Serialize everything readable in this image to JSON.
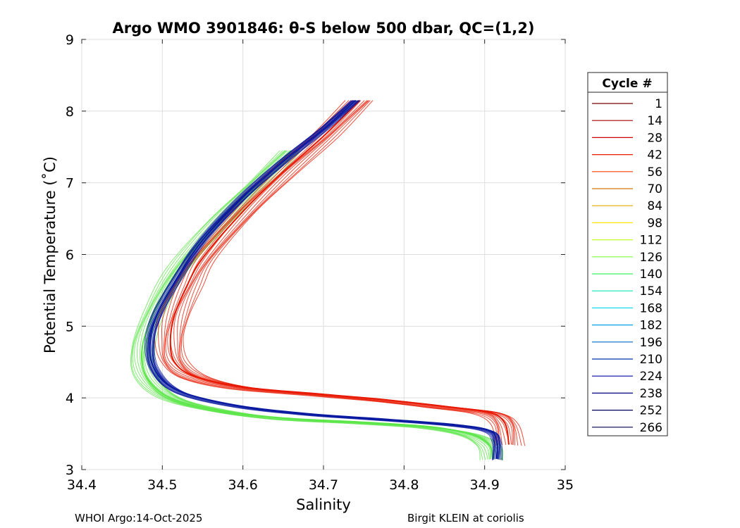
{
  "chart_data": {
    "type": "line",
    "title": "Argo WMO 3901846: θ-S below 500 dbar,  QC=(1,2)",
    "xlabel": "Salinity",
    "ylabel": "Potential Temperature (˚C)",
    "xlim": [
      34.4,
      35.0
    ],
    "ylim": [
      3,
      9
    ],
    "x_ticks": [
      "34.4",
      "34.5",
      "34.6",
      "34.7",
      "34.8",
      "34.9",
      "35"
    ],
    "y_ticks": [
      "3",
      "4",
      "5",
      "6",
      "7",
      "8",
      "9"
    ],
    "grid": true,
    "legend": {
      "title": "Cycle #",
      "placement": "right-outside",
      "entries": [
        {
          "label": "1",
          "color": "#7a0000"
        },
        {
          "label": "14",
          "color": "#a80000"
        },
        {
          "label": "28",
          "color": "#d40000"
        },
        {
          "label": "42",
          "color": "#ee1a00"
        },
        {
          "label": "56",
          "color": "#ff4000"
        },
        {
          "label": "70",
          "color": "#d27a00"
        },
        {
          "label": "84",
          "color": "#e6a800"
        },
        {
          "label": "98",
          "color": "#ffe600"
        },
        {
          "label": "112",
          "color": "#c8ff2e"
        },
        {
          "label": "126",
          "color": "#7eff40"
        },
        {
          "label": "140",
          "color": "#3cf060"
        },
        {
          "label": "154",
          "color": "#14e6b4"
        },
        {
          "label": "168",
          "color": "#14d8f0"
        },
        {
          "label": "182",
          "color": "#00a0e6"
        },
        {
          "label": "196",
          "color": "#0068c8"
        },
        {
          "label": "210",
          "color": "#0032b4"
        },
        {
          "label": "224",
          "color": "#000ca0"
        },
        {
          "label": "238",
          "color": "#000082"
        },
        {
          "label": "252",
          "color": "#00005a"
        },
        {
          "label": "266",
          "color": "#000046"
        }
      ]
    },
    "series": [
      {
        "name": "red group (cycles 1–98)",
        "color": "#e81800",
        "x": [
          34.745,
          34.7,
          34.65,
          34.6,
          34.55,
          34.53,
          34.515,
          34.51,
          34.515,
          34.54,
          34.6,
          34.7,
          34.78,
          34.85,
          34.905,
          34.925,
          34.93
        ],
        "y": [
          8.15,
          7.65,
          7.15,
          6.6,
          5.95,
          5.55,
          5.15,
          4.8,
          4.5,
          4.3,
          4.15,
          4.05,
          3.97,
          3.88,
          3.8,
          3.65,
          3.35
        ]
      },
      {
        "name": "green group (cycles 112–154)",
        "color": "#5ce64a",
        "x": [
          34.66,
          34.62,
          34.57,
          34.52,
          34.49,
          34.475,
          34.48,
          34.51,
          34.57,
          34.65,
          34.75,
          34.83,
          34.88,
          34.905,
          34.91
        ],
        "y": [
          7.45,
          7.0,
          6.45,
          5.8,
          5.2,
          4.7,
          4.3,
          4.0,
          3.82,
          3.72,
          3.66,
          3.6,
          3.5,
          3.35,
          3.15
        ]
      },
      {
        "name": "blue group (cycles 168–266)",
        "color": "#0a1aa0",
        "x": [
          34.74,
          34.7,
          34.65,
          34.6,
          34.55,
          34.52,
          34.495,
          34.485,
          34.49,
          34.52,
          34.59,
          34.68,
          34.78,
          34.86,
          34.905,
          34.915,
          34.915
        ],
        "y": [
          8.15,
          7.75,
          7.3,
          6.8,
          6.2,
          5.7,
          5.2,
          4.8,
          4.4,
          4.1,
          3.9,
          3.78,
          3.7,
          3.63,
          3.55,
          3.4,
          3.15
        ]
      }
    ]
  },
  "footer": {
    "left": "WHOI Argo:14-Oct-2025",
    "right": "Birgit KLEIN at coriolis"
  }
}
